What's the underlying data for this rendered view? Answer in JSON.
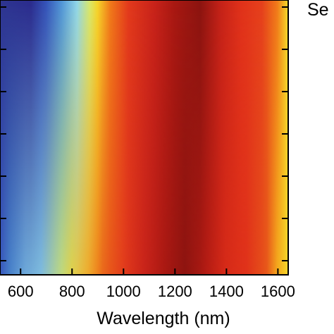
{
  "chart_data": {
    "type": "heatmap",
    "title": "",
    "xlabel": "Wavelength (nm)",
    "ylabel": "",
    "xlim": [
      520,
      1640
    ],
    "xticks": [
      600,
      800,
      1000,
      1200,
      1400,
      1600
    ],
    "xtick_labels": [
      "600",
      "800",
      "1000",
      "1200",
      "1400",
      "1600"
    ],
    "ytick_count": 7,
    "corner_text": "Se",
    "colormap": [
      "#2a2a8c",
      "#3a5ec8",
      "#5fb3e6",
      "#8fd6ea",
      "#f2e23a",
      "#f59a1e",
      "#e23a1c",
      "#b81c14",
      "#8b1410"
    ],
    "color_band_stops_top": [
      {
        "x": 520,
        "c": "#2e3590"
      },
      {
        "x": 640,
        "c": "#2a2a8c"
      },
      {
        "x": 700,
        "c": "#3452b8"
      },
      {
        "x": 760,
        "c": "#4f94d8"
      },
      {
        "x": 820,
        "c": "#8fd6ea"
      },
      {
        "x": 870,
        "c": "#d8e86a"
      },
      {
        "x": 900,
        "c": "#f5d52a"
      },
      {
        "x": 950,
        "c": "#f07a1a"
      },
      {
        "x": 1020,
        "c": "#e23a1c"
      },
      {
        "x": 1120,
        "c": "#c8231a"
      },
      {
        "x": 1200,
        "c": "#a81812"
      },
      {
        "x": 1300,
        "c": "#8b1410"
      },
      {
        "x": 1380,
        "c": "#c42218"
      },
      {
        "x": 1460,
        "c": "#e0321a"
      },
      {
        "x": 1540,
        "c": "#e5401c"
      },
      {
        "x": 1600,
        "c": "#f07a1a"
      },
      {
        "x": 1640,
        "c": "#f5d52a"
      }
    ],
    "color_band_stops_bottom": [
      {
        "x": 520,
        "c": "#3a5ec8"
      },
      {
        "x": 560,
        "c": "#4f94d8"
      },
      {
        "x": 620,
        "c": "#7cc4ea"
      },
      {
        "x": 680,
        "c": "#8fd6ea"
      },
      {
        "x": 760,
        "c": "#d8e86a"
      },
      {
        "x": 800,
        "c": "#f5d52a"
      },
      {
        "x": 860,
        "c": "#f5a21e"
      },
      {
        "x": 920,
        "c": "#e85a1a"
      },
      {
        "x": 1000,
        "c": "#e23a1c"
      },
      {
        "x": 1080,
        "c": "#c8231a"
      },
      {
        "x": 1160,
        "c": "#a81812"
      },
      {
        "x": 1240,
        "c": "#8b1410"
      },
      {
        "x": 1320,
        "c": "#b81c14"
      },
      {
        "x": 1400,
        "c": "#d92c18"
      },
      {
        "x": 1480,
        "c": "#e0321a"
      },
      {
        "x": 1560,
        "c": "#e85a1a"
      },
      {
        "x": 1600,
        "c": "#f5b21e"
      },
      {
        "x": 1640,
        "c": "#f5d52a"
      }
    ]
  }
}
